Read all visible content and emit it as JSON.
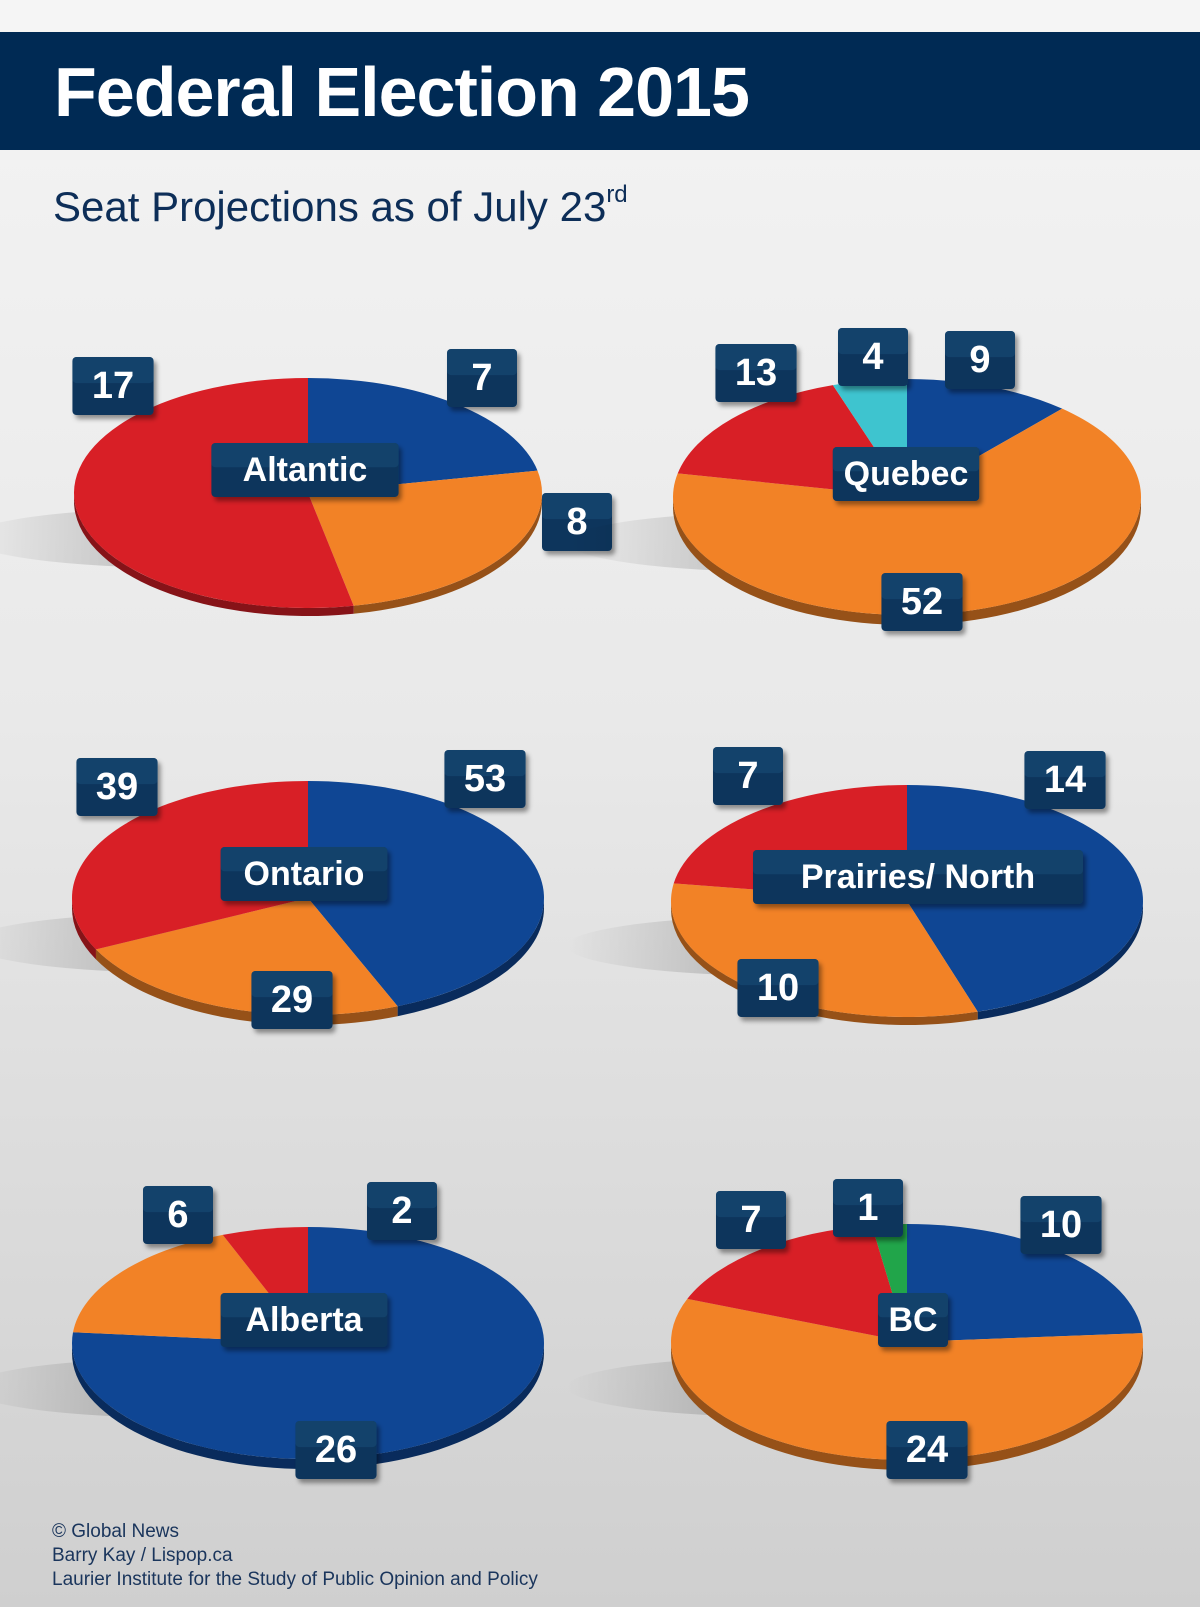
{
  "header": {
    "title": "Federal Election 2015",
    "subtitle_main": "Seat Projections as of July 23",
    "subtitle_sup": "rd"
  },
  "colors": {
    "liberal_red": "#d81f26",
    "conservative_blue": "#0f4694",
    "ndp_orange": "#f28226",
    "bloc_cyan": "#3ec4cf",
    "green_party": "#21a54a",
    "label_bg": "#0b355c"
  },
  "chart_data": [
    {
      "type": "pie",
      "name": "Altantic",
      "slices": [
        {
          "party": "conservative",
          "value": 7,
          "color": "#0f4694"
        },
        {
          "party": "ndp",
          "value": 8,
          "color": "#f28226"
        },
        {
          "party": "liberal",
          "value": 17,
          "color": "#d81f26"
        }
      ]
    },
    {
      "type": "pie",
      "name": "Quebec",
      "slices": [
        {
          "party": "conservative",
          "value": 9,
          "color": "#0f4694"
        },
        {
          "party": "ndp",
          "value": 52,
          "color": "#f28226"
        },
        {
          "party": "liberal",
          "value": 13,
          "color": "#d81f26"
        },
        {
          "party": "bloc",
          "value": 4,
          "color": "#3ec4cf"
        }
      ]
    },
    {
      "type": "pie",
      "name": "Ontario",
      "slices": [
        {
          "party": "conservative",
          "value": 53,
          "color": "#0f4694"
        },
        {
          "party": "ndp",
          "value": 29,
          "color": "#f28226"
        },
        {
          "party": "liberal",
          "value": 39,
          "color": "#d81f26"
        }
      ]
    },
    {
      "type": "pie",
      "name": "Prairies/ North",
      "slices": [
        {
          "party": "conservative",
          "value": 14,
          "color": "#0f4694"
        },
        {
          "party": "ndp",
          "value": 10,
          "color": "#f28226"
        },
        {
          "party": "liberal",
          "value": 7,
          "color": "#d81f26"
        }
      ]
    },
    {
      "type": "pie",
      "name": "Alberta",
      "slices": [
        {
          "party": "conservative",
          "value": 26,
          "color": "#0f4694"
        },
        {
          "party": "ndp",
          "value": 6,
          "color": "#f28226"
        },
        {
          "party": "liberal",
          "value": 2,
          "color": "#d81f26"
        }
      ]
    },
    {
      "type": "pie",
      "name": "BC",
      "slices": [
        {
          "party": "conservative",
          "value": 10,
          "color": "#0f4694"
        },
        {
          "party": "ndp",
          "value": 24,
          "color": "#f28226"
        },
        {
          "party": "liberal",
          "value": 7,
          "color": "#d81f26"
        },
        {
          "party": "green",
          "value": 1,
          "color": "#21a54a"
        }
      ]
    }
  ],
  "footer": {
    "line1": "© Global News",
    "line2": "Barry Kay / Lispop.ca",
    "line3": "Laurier Institute for the Study of Public Opinion and Policy"
  }
}
